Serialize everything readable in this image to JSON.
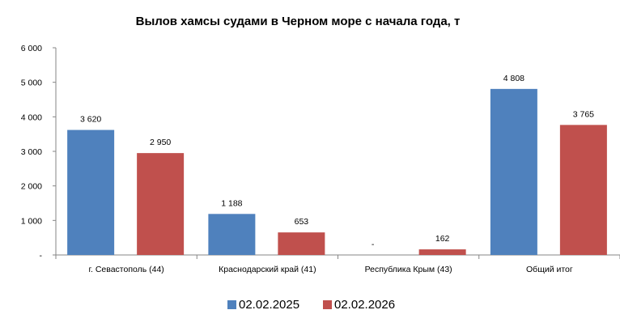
{
  "chart_data": {
    "type": "bar",
    "title": "Вылов хамсы судами в Черном море с начала  года, т",
    "categories": [
      "г. Севастополь (44)",
      "Краснодарский край (41)",
      "Республика Крым (43)",
      "Общий итог"
    ],
    "series": [
      {
        "name": "02.02.2025",
        "color": "#4F81BD",
        "values": [
          3620,
          1188,
          0,
          4808
        ],
        "labels": [
          "3 620",
          "1 188",
          "-",
          "4 808"
        ]
      },
      {
        "name": "02.02.2026",
        "color": "#C0504D",
        "values": [
          2950,
          653,
          162,
          3765
        ],
        "labels": [
          "2 950",
          "653",
          "162",
          "3 765"
        ]
      }
    ],
    "ylim": [
      0,
      6000
    ],
    "yticks": [
      0,
      1000,
      2000,
      3000,
      4000,
      5000,
      6000
    ],
    "ytick_labels": [
      "-",
      "1 000",
      "2 000",
      "3 000",
      "4 000",
      "5 000",
      "6 000"
    ],
    "grid": false,
    "legend_position": "bottom"
  }
}
